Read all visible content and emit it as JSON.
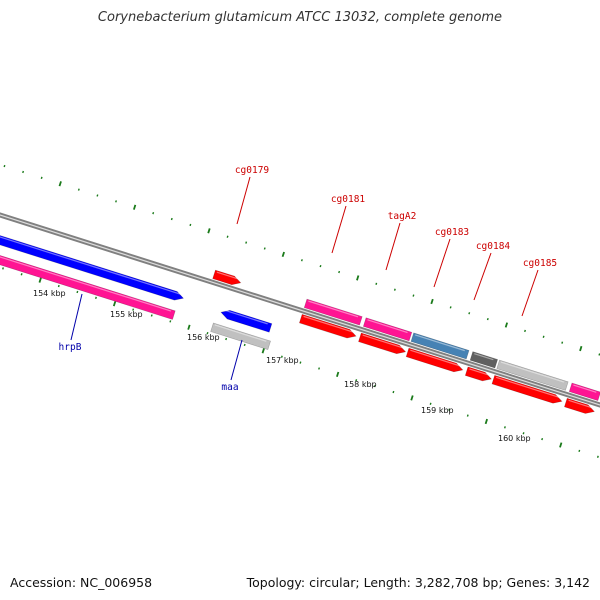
{
  "title": "Corynebacterium glutamicum ATCC 13032, complete genome",
  "footer": {
    "accession": "Accession: NC_006958",
    "summary": "Topology: circular; Length: 3,282,708 bp; Genes: 3,142"
  },
  "colors": {
    "backbone": "#808080",
    "tick": "#1a7a1a",
    "label_forward": "#cc0000",
    "label_reverse": "#0000aa",
    "gene_red": "#ff0000",
    "gene_pink": "#ff1493",
    "gene_blue": "#0000ff",
    "gene_steel": "#4682b4",
    "gene_light_gray": "#c0c0c0",
    "gene_dark_gray": "#606060"
  },
  "scale": {
    "labels": [
      "154 kbp",
      "155 kbp",
      "156 kbp",
      "157 kbp",
      "158 kbp",
      "159 kbp",
      "160 kbp"
    ]
  },
  "gene_labels": {
    "forward": [
      "cg0179",
      "cg0181",
      "tagA2",
      "cg0183",
      "cg0184",
      "cg0185"
    ],
    "reverse": [
      "hrpB",
      "maa"
    ]
  }
}
